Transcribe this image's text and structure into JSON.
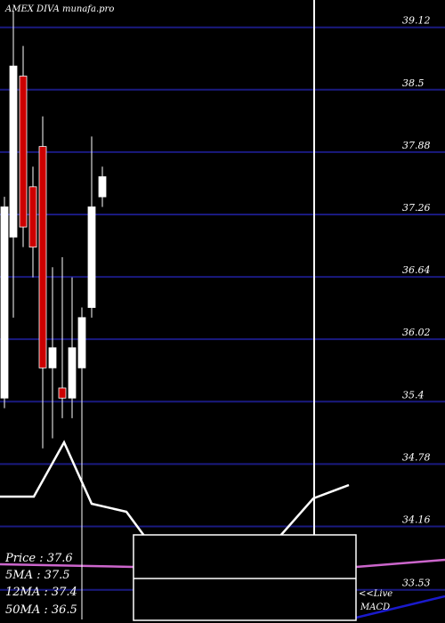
{
  "chart_data": {
    "type": "candlestick",
    "title": "AMEX  DIVA munafa.pro",
    "ylim": [
      33.2,
      39.25
    ],
    "y_ticks": [
      39.12,
      38.5,
      37.88,
      37.26,
      36.64,
      36.02,
      35.4,
      34.78,
      34.16,
      33.53
    ],
    "grid": true,
    "candles": [
      {
        "open": 35.4,
        "close": 37.3,
        "high": 37.4,
        "low": 35.3,
        "color": "white"
      },
      {
        "open": 37.0,
        "close": 38.7,
        "high": 39.25,
        "low": 36.2,
        "color": "white"
      },
      {
        "open": 38.6,
        "close": 37.1,
        "high": 38.9,
        "low": 36.9,
        "color": "red"
      },
      {
        "open": 37.5,
        "close": 36.9,
        "high": 37.7,
        "low": 36.6,
        "color": "red"
      },
      {
        "open": 37.9,
        "close": 35.7,
        "high": 38.2,
        "low": 34.9,
        "color": "red"
      },
      {
        "open": 35.9,
        "close": 35.7,
        "high": 36.7,
        "low": 35.0,
        "color": "white"
      },
      {
        "open": 35.5,
        "close": 35.4,
        "high": 36.8,
        "low": 35.2,
        "color": "red"
      },
      {
        "open": 35.4,
        "close": 35.9,
        "high": 36.6,
        "low": 35.2,
        "color": "white"
      },
      {
        "open": 35.7,
        "close": 36.2,
        "high": 36.3,
        "low": 33.2,
        "color": "white"
      },
      {
        "open": 36.3,
        "close": 37.3,
        "high": 38.0,
        "low": 36.2,
        "color": "white"
      },
      {
        "open": 37.6,
        "close": 37.4,
        "high": 37.7,
        "low": 37.3,
        "color": "white"
      }
    ],
    "legend": {
      "price": "Price   : 37.6",
      "ma5": "5MA : 37.5",
      "ma12": "12MA : 37.4",
      "ma50": "50MA : 36.5"
    },
    "indicator_labels": {
      "live": "<<Live",
      "macd": "MACD"
    },
    "colors": {
      "background": "#000000",
      "grid": "#1a1a80",
      "up_candle": "#ffffff",
      "down_candle": "#cc0000",
      "ma_pink": "#cc66cc",
      "ma_blue": "#1a1acc",
      "line_white": "#ffffff"
    }
  }
}
